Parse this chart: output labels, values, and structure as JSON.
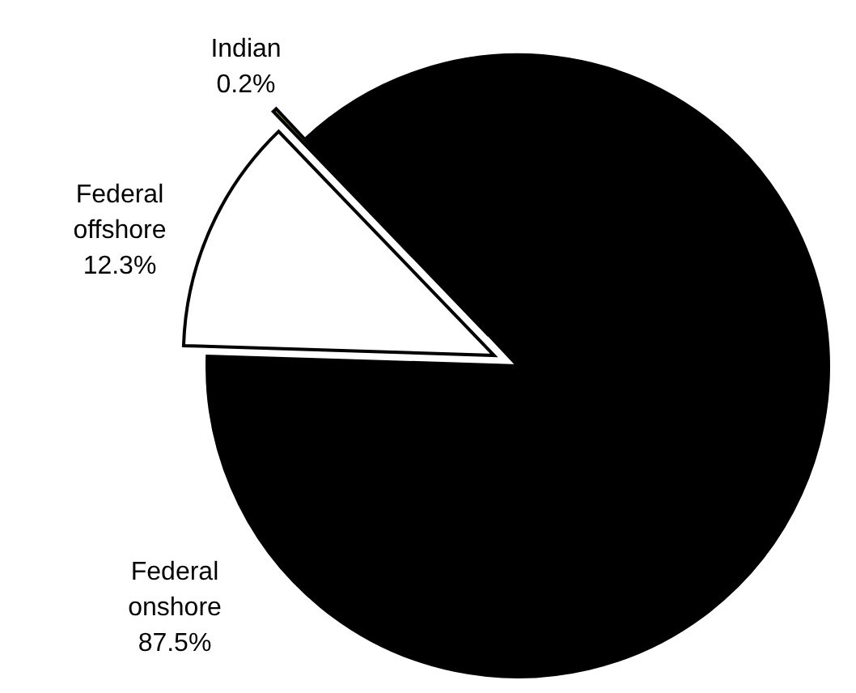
{
  "chart_data": {
    "type": "pie",
    "categories": [
      "Federal onshore",
      "Federal offshore",
      "Indian"
    ],
    "values": [
      87.5,
      12.3,
      0.2
    ],
    "colors": [
      "#000000",
      "#ffffff",
      "#cccc00"
    ],
    "value_labels": [
      "87.5%",
      "12.3%",
      "0.2%"
    ]
  }
}
